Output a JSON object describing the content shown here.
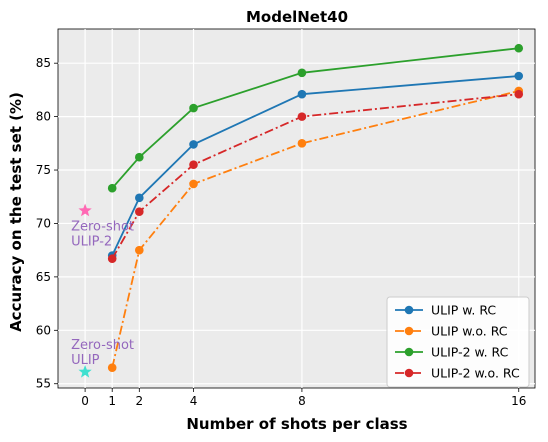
{
  "chart_data": {
    "type": "line",
    "title": "ModelNet40",
    "xlabel": "Number of shots per class",
    "ylabel": "Accuracy on the test set (%)",
    "xticks": [
      0,
      1,
      2,
      4,
      8,
      16
    ],
    "yticks": [
      55,
      60,
      65,
      70,
      75,
      80,
      85
    ],
    "xlim": [
      -1.0,
      16.6
    ],
    "ylim": [
      54.6,
      88.2
    ],
    "grid": true,
    "background": "#ebebeb",
    "legend_position": "lower-right",
    "x": [
      1,
      2,
      4,
      8,
      16
    ],
    "series": [
      {
        "name": "ULIP w. RC",
        "values": [
          67.0,
          72.4,
          77.4,
          82.1,
          83.8
        ],
        "color": "#1f77b4",
        "linestyle": "solid"
      },
      {
        "name": "ULIP w.o. RC",
        "values": [
          56.5,
          67.5,
          73.7,
          77.5,
          82.4
        ],
        "color": "#ff7f0e",
        "linestyle": "dashdot"
      },
      {
        "name": "ULIP-2 w. RC",
        "values": [
          73.3,
          76.2,
          80.8,
          84.1,
          86.4
        ],
        "color": "#2ca02c",
        "linestyle": "solid"
      },
      {
        "name": "ULIP-2 w.o. RC",
        "values": [
          66.7,
          71.1,
          75.5,
          80.0,
          82.1
        ],
        "color": "#d62728",
        "linestyle": "dashdot"
      }
    ],
    "annotations": [
      {
        "text": [
          "Zero-shot",
          "ULIP-2"
        ],
        "x": 0,
        "y": 71.2,
        "marker": "star",
        "marker_color": "#ff69b4",
        "text_color": "#9467bd"
      },
      {
        "text": [
          "Zero-shot",
          "ULIP"
        ],
        "x": 0,
        "y": 56.1,
        "marker": "star",
        "marker_color": "#40e0d0",
        "text_color": "#9467bd"
      }
    ]
  }
}
